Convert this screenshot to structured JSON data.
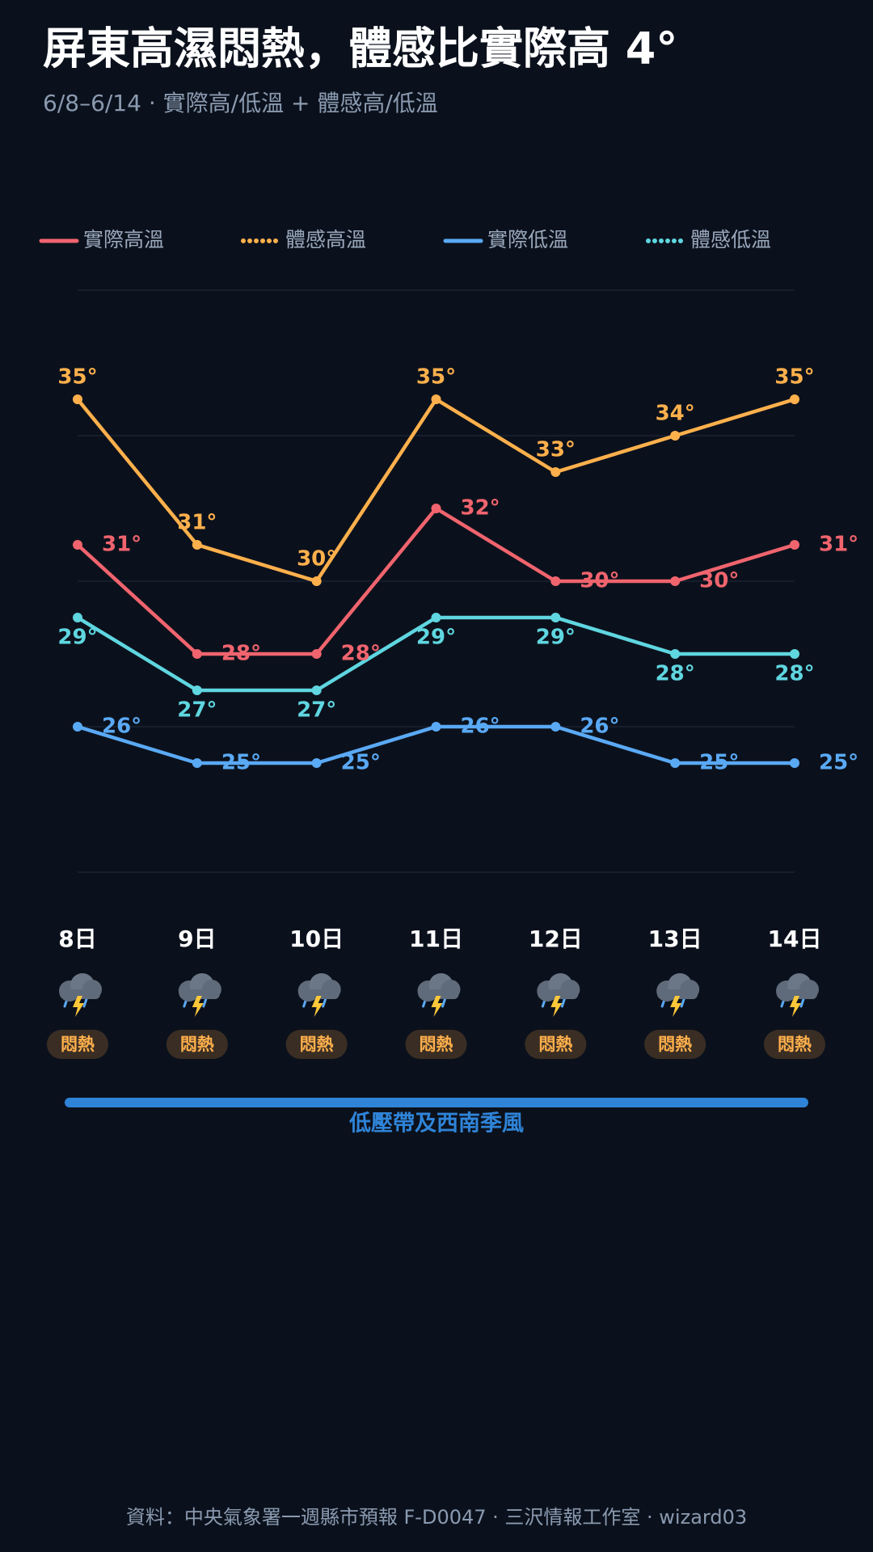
{
  "chart_data": {
    "type": "line",
    "title": "屏東高濕悶熱，體感比實際高 4°",
    "subtitle": "6/8–6/14 · 實際高/低溫 + 體感高/低溫",
    "categories": [
      "8日",
      "9日",
      "10日",
      "11日",
      "12日",
      "13日",
      "14日"
    ],
    "conditions": [
      "悶熱",
      "悶熱",
      "悶熱",
      "悶熱",
      "悶熱",
      "悶熱",
      "悶熱"
    ],
    "annotation": "低壓帶及西南季風",
    "source": "資料：中央氣象署一週縣市預報 F-D0047 · 三沢情報工作室 · wizard03",
    "ylim": [
      22,
      38
    ],
    "yticks": [
      22,
      26,
      30,
      34,
      38
    ],
    "grid": true,
    "series": [
      {
        "name": "實際高溫",
        "color": "#f0646e",
        "legend_style": "solid",
        "label_position": "right",
        "values": [
          31,
          28,
          28,
          32,
          30,
          30,
          31
        ],
        "value_labels": [
          "31°",
          "28°",
          "28°",
          "32°",
          "30°",
          "30°",
          "31°"
        ]
      },
      {
        "name": "體感高溫",
        "color": "#ffb04c",
        "legend_style": "dotted",
        "label_position": "above",
        "values": [
          35,
          31,
          30,
          35,
          33,
          34,
          35
        ],
        "value_labels": [
          "35°",
          "31°",
          "30°",
          "35°",
          "33°",
          "34°",
          "35°"
        ]
      },
      {
        "name": "實際低溫",
        "color": "#5aa9f5",
        "legend_style": "solid",
        "label_position": "right",
        "values": [
          26,
          25,
          25,
          26,
          26,
          25,
          25
        ],
        "value_labels": [
          "26°",
          "25°",
          "25°",
          "26°",
          "26°",
          "25°",
          "25°"
        ]
      },
      {
        "name": "體感低溫",
        "color": "#5fd6e0",
        "legend_style": "dotted",
        "label_position": "below",
        "values": [
          29,
          27,
          27,
          29,
          29,
          28,
          28
        ],
        "value_labels": [
          "29°",
          "27°",
          "27°",
          "29°",
          "29°",
          "28°",
          "28°"
        ]
      }
    ]
  }
}
